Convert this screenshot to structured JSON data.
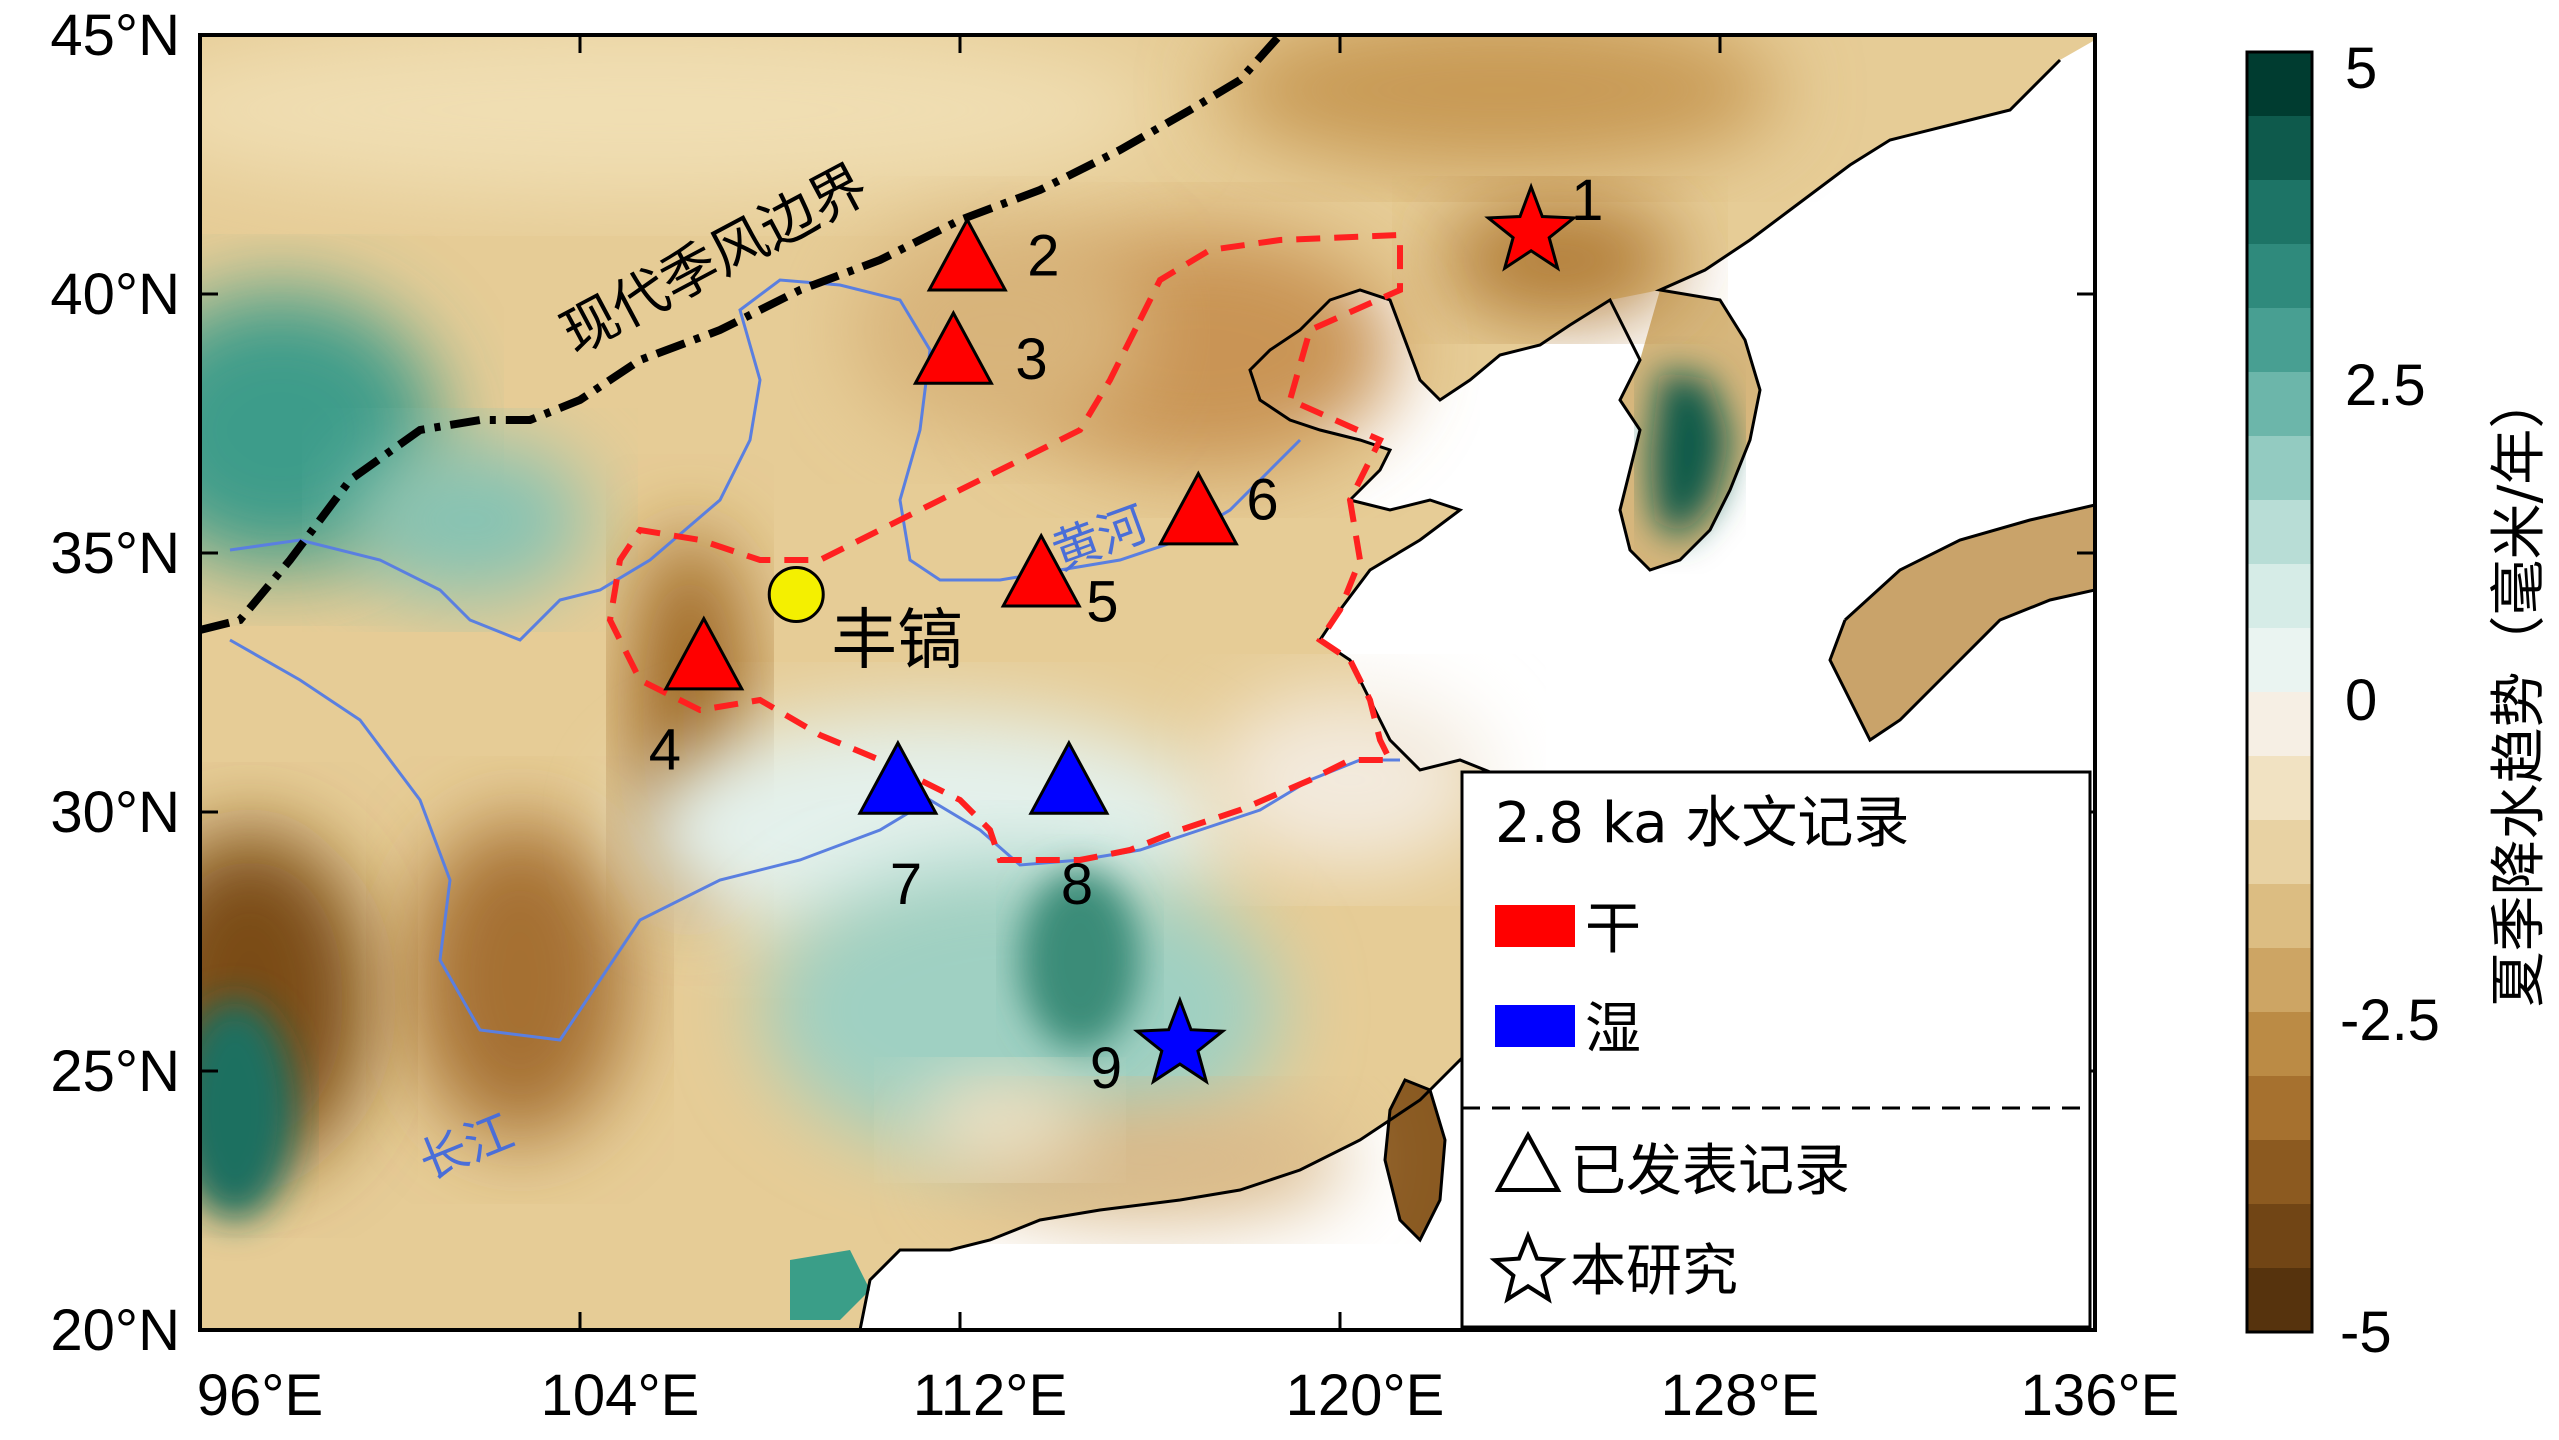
{
  "map": {
    "x_ticks": [
      "96°E",
      "104°E",
      "112°E",
      "120°E",
      "128°E",
      "136°E"
    ],
    "y_ticks": [
      "45°N",
      "40°N",
      "35°N",
      "30°N",
      "25°N",
      "20°N"
    ],
    "extent": {
      "lon": [
        96,
        137
      ],
      "lat": [
        20,
        45
      ]
    },
    "monsoon_boundary_label": "现代季风边界",
    "rivers": {
      "yellow": "黄河",
      "yangtze": "长江"
    },
    "site_label": "丰镐",
    "site_color": "#f4f000",
    "sites": [
      {
        "id": "1",
        "marker": "star",
        "state": "dry",
        "lon": 124.8,
        "lat": 41.2
      },
      {
        "id": "2",
        "marker": "triangle",
        "state": "dry",
        "lon": 112.6,
        "lat": 40.7
      },
      {
        "id": "3",
        "marker": "triangle",
        "state": "dry",
        "lon": 112.3,
        "lat": 38.9
      },
      {
        "id": "4",
        "marker": "triangle",
        "state": "dry",
        "lon": 106.9,
        "lat": 33.0
      },
      {
        "id": "5",
        "marker": "triangle",
        "state": "dry",
        "lon": 114.2,
        "lat": 34.6
      },
      {
        "id": "6",
        "marker": "triangle",
        "state": "dry",
        "lon": 117.6,
        "lat": 35.8
      },
      {
        "id": "7",
        "marker": "triangle",
        "state": "wet",
        "lon": 111.1,
        "lat": 30.6
      },
      {
        "id": "8",
        "marker": "triangle",
        "state": "wet",
        "lon": 114.8,
        "lat": 30.6
      },
      {
        "id": "9",
        "marker": "star",
        "state": "wet",
        "lon": 117.2,
        "lat": 25.5
      }
    ],
    "site_fengao": {
      "lon": 108.9,
      "lat": 34.2
    }
  },
  "legend": {
    "title": "2.8 ka 水文记录",
    "dry_label": "干",
    "wet_label": "湿",
    "published_label": "已发表记录",
    "this_study_label": "本研究"
  },
  "colorbar": {
    "label": "夏季降水趋势（毫米/年）",
    "ticks": [
      "5",
      "2.5",
      "0",
      "-2.5",
      "-5"
    ],
    "range": [
      -5,
      5
    ]
  },
  "colors": {
    "dry": "#ff0000",
    "wet": "#0000ff",
    "river": "#5a7fe0",
    "boundary": "#000000",
    "region_outline": "#ff2020"
  }
}
